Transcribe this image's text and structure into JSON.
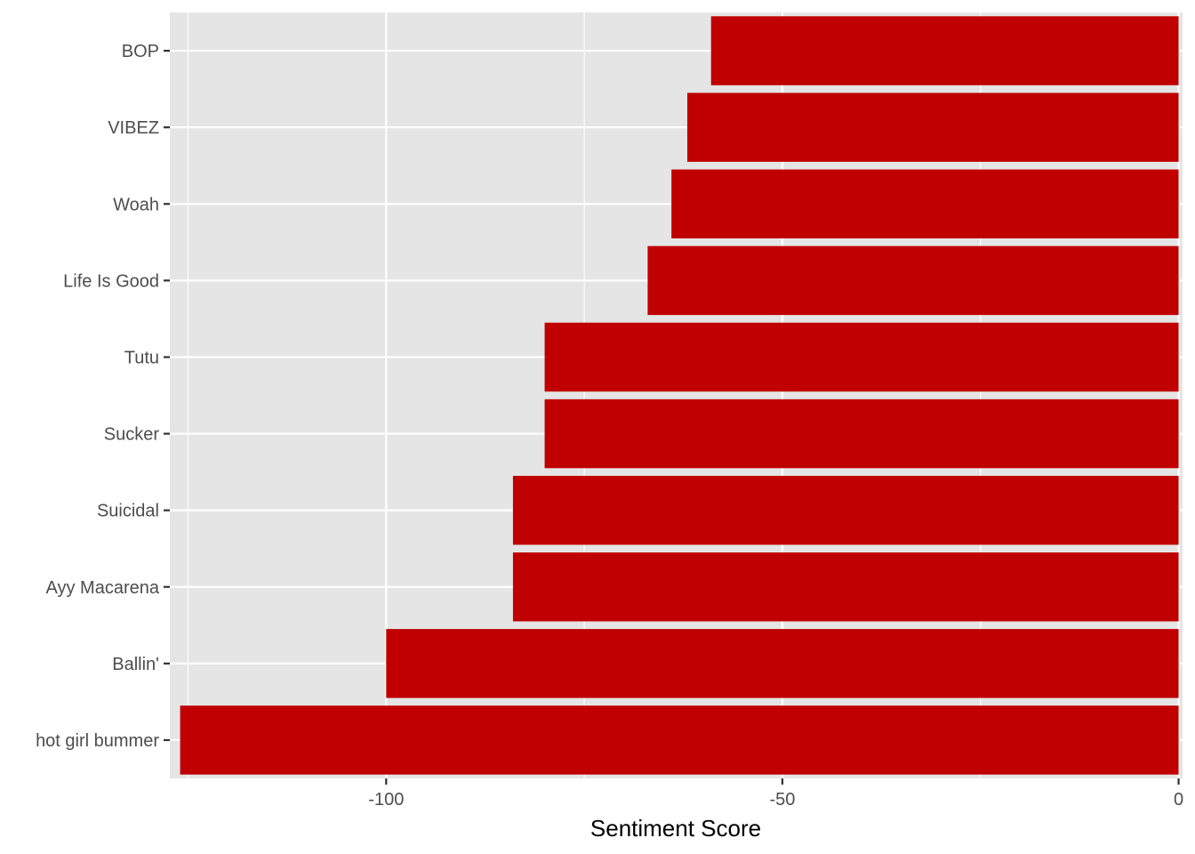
{
  "chart_data": {
    "type": "bar",
    "orientation": "horizontal",
    "categories": [
      "BOP",
      "VIBEZ",
      "Woah",
      "Life Is Good ",
      "Tutu",
      "Sucker",
      "Suicidal",
      "Ayy Macarena",
      "Ballin' ",
      "hot girl bummer"
    ],
    "values": [
      -59,
      -62,
      -64,
      -67,
      -80,
      -80,
      -84,
      -84,
      -100,
      -126
    ],
    "xlabel": "Sentiment Score",
    "ylabel": "",
    "xlim": [
      -127.3,
      0.5
    ],
    "x_ticks": [
      -100,
      -50,
      0
    ],
    "x_tick_labels": [
      "-100",
      "-50",
      "0"
    ],
    "grid": true,
    "bar_color": "#C00000",
    "panel_background": "#E5E5E5",
    "gridline_color": "#FFFFFF"
  }
}
